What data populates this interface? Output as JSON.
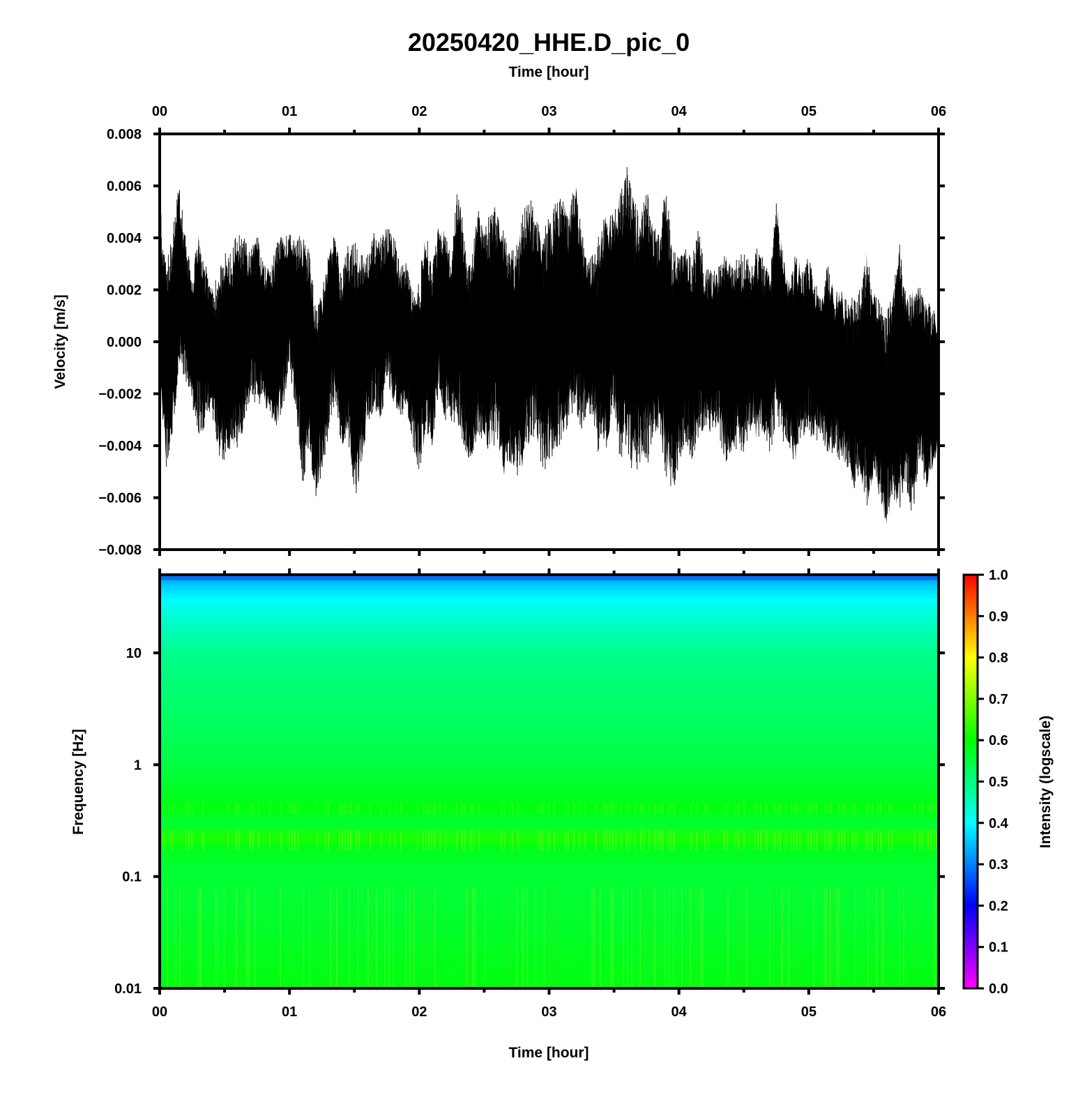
{
  "chart_data": [
    {
      "type": "line",
      "title": "20250420_HHE.D_pic_0",
      "top_xlabel": "Time [hour]",
      "ylabel": "Velocity [m/s]",
      "x_unit": "hour",
      "xlim": [
        0,
        6
      ],
      "x_ticks": [
        "00",
        "01",
        "02",
        "03",
        "04",
        "05",
        "06"
      ],
      "ylim": [
        -0.008,
        0.008
      ],
      "y_ticks": [
        "0.008",
        "0.006",
        "0.004",
        "0.002",
        "0.000",
        "−0.002",
        "−0.004",
        "−0.006",
        "−0.008"
      ],
      "series": [
        {
          "color": "#000000",
          "description_values": "approximate envelope of a dense seismic velocity trace (hour, m/s)",
          "x": [
            0.0,
            0.05,
            0.1,
            0.15,
            0.2,
            0.25,
            0.3,
            0.35,
            0.4,
            0.45,
            0.5,
            0.55,
            0.6,
            0.65,
            0.7,
            0.75,
            0.8,
            0.85,
            0.9,
            0.95,
            1.0,
            1.05,
            1.1,
            1.15,
            1.2,
            1.25,
            1.3,
            1.35,
            1.4,
            1.45,
            1.5,
            1.55,
            1.6,
            1.65,
            1.7,
            1.75,
            1.8,
            1.85,
            1.9,
            1.95,
            2.0,
            2.05,
            2.1,
            2.15,
            2.2,
            2.25,
            2.3,
            2.35,
            2.4,
            2.45,
            2.5,
            2.55,
            2.6,
            2.65,
            2.7,
            2.75,
            2.8,
            2.85,
            2.9,
            2.95,
            3.0,
            3.05,
            3.1,
            3.15,
            3.2,
            3.25,
            3.3,
            3.35,
            3.4,
            3.45,
            3.5,
            3.55,
            3.6,
            3.65,
            3.7,
            3.75,
            3.8,
            3.85,
            3.9,
            3.95,
            4.0,
            4.05,
            4.1,
            4.15,
            4.2,
            4.25,
            4.3,
            4.35,
            4.4,
            4.45,
            4.5,
            4.55,
            4.6,
            4.65,
            4.7,
            4.75,
            4.8,
            4.85,
            4.9,
            4.95,
            5.0,
            5.05,
            5.1,
            5.15,
            5.2,
            5.25,
            5.3,
            5.35,
            5.4,
            5.45,
            5.5,
            5.55,
            5.6,
            5.65,
            5.7,
            5.75,
            5.8,
            5.85,
            5.9,
            5.95,
            6.0
          ],
          "upper": [
            0.0055,
            0.003,
            0.0045,
            0.0061,
            0.004,
            0.0025,
            0.0043,
            0.003,
            0.0022,
            0.0026,
            0.0034,
            0.0035,
            0.0043,
            0.0041,
            0.0035,
            0.0042,
            0.003,
            0.0028,
            0.0039,
            0.0041,
            0.0042,
            0.0038,
            0.0043,
            0.0037,
            0.0013,
            0.002,
            0.0035,
            0.0042,
            0.0025,
            0.0038,
            0.0042,
            0.0035,
            0.0034,
            0.0042,
            0.0041,
            0.0044,
            0.0043,
            0.0029,
            0.0031,
            0.002,
            0.0024,
            0.0046,
            0.0029,
            0.0047,
            0.0042,
            0.0035,
            0.0063,
            0.0038,
            0.0032,
            0.0052,
            0.0044,
            0.005,
            0.0054,
            0.0043,
            0.0034,
            0.0038,
            0.005,
            0.0056,
            0.0048,
            0.0043,
            0.0048,
            0.0055,
            0.0057,
            0.0048,
            0.0063,
            0.0043,
            0.0031,
            0.0035,
            0.0044,
            0.0053,
            0.0049,
            0.006,
            0.0069,
            0.0056,
            0.0048,
            0.006,
            0.0045,
            0.0042,
            0.0063,
            0.0035,
            0.0035,
            0.0038,
            0.0032,
            0.0044,
            0.0028,
            0.0028,
            0.0028,
            0.0035,
            0.0031,
            0.0032,
            0.0035,
            0.0032,
            0.0036,
            0.0035,
            0.0025,
            0.0055,
            0.0035,
            0.0023,
            0.0035,
            0.0028,
            0.0033,
            0.0023,
            0.0016,
            0.0032,
            0.0018,
            0.0022,
            0.0015,
            0.0018,
            0.0022,
            0.0036,
            0.002,
            0.0015,
            0.0011,
            0.002,
            0.0038,
            0.0017,
            0.002,
            0.0022,
            0.0015,
            0.0015,
            0.0005
          ],
          "lower": [
            -0.001,
            -0.005,
            -0.0035,
            -0.001,
            -0.0015,
            -0.0025,
            -0.0036,
            -0.0033,
            -0.0025,
            -0.0045,
            -0.0048,
            -0.004,
            -0.0042,
            -0.0033,
            -0.0021,
            -0.0026,
            -0.0024,
            -0.0028,
            -0.0034,
            -0.0026,
            -0.001,
            -0.0028,
            -0.0056,
            -0.004,
            -0.0063,
            -0.0049,
            -0.0038,
            -0.0021,
            -0.0041,
            -0.0036,
            -0.0063,
            -0.0052,
            -0.0031,
            -0.0027,
            -0.0032,
            -0.0016,
            -0.0023,
            -0.003,
            -0.0025,
            -0.0041,
            -0.0051,
            -0.0038,
            -0.0042,
            -0.0018,
            -0.0031,
            -0.0031,
            -0.0033,
            -0.0041,
            -0.0048,
            -0.0036,
            -0.004,
            -0.0042,
            -0.0038,
            -0.0052,
            -0.0047,
            -0.0053,
            -0.0048,
            -0.0039,
            -0.0035,
            -0.0052,
            -0.0046,
            -0.0044,
            -0.0038,
            -0.0032,
            -0.0025,
            -0.0035,
            -0.0026,
            -0.0033,
            -0.0049,
            -0.0039,
            -0.0025,
            -0.0046,
            -0.0043,
            -0.0052,
            -0.0048,
            -0.0051,
            -0.0036,
            -0.0036,
            -0.0052,
            -0.0059,
            -0.0048,
            -0.0039,
            -0.0046,
            -0.0039,
            -0.0032,
            -0.0038,
            -0.0032,
            -0.0048,
            -0.0044,
            -0.0041,
            -0.0043,
            -0.0035,
            -0.0038,
            -0.0035,
            -0.0043,
            -0.0033,
            -0.0038,
            -0.0044,
            -0.0046,
            -0.0037,
            -0.0035,
            -0.004,
            -0.0036,
            -0.0045,
            -0.0042,
            -0.0047,
            -0.005,
            -0.0057,
            -0.0052,
            -0.0067,
            -0.0053,
            -0.0061,
            -0.0071,
            -0.0063,
            -0.0065,
            -0.0055,
            -0.0069,
            -0.0045,
            -0.0057,
            -0.0049,
            -0.004
          ]
        }
      ]
    },
    {
      "type": "heatmap",
      "xlabel": "Time [hour]",
      "ylabel": "Frequency [Hz]",
      "xlim": [
        0,
        6
      ],
      "x_ticks": [
        "00",
        "01",
        "02",
        "03",
        "04",
        "05",
        "06"
      ],
      "y_scale": "log",
      "ylim": [
        0.01,
        50
      ],
      "y_ticks": [
        {
          "value": 10,
          "label": "10"
        },
        {
          "value": 1,
          "label": "1"
        },
        {
          "value": 0.1,
          "label": "0.1"
        },
        {
          "value": 0.01,
          "label": "0.01"
        }
      ],
      "intensity_by_frequency": {
        "frequency": [
          50,
          40,
          30,
          22,
          15,
          10,
          5,
          2,
          1,
          0.6,
          0.4,
          0.3,
          0.22,
          0.18,
          0.12,
          0.06,
          0.03,
          0.01
        ],
        "intensity": [
          0.31,
          0.36,
          0.4,
          0.43,
          0.46,
          0.49,
          0.51,
          0.53,
          0.55,
          0.57,
          0.59,
          0.56,
          0.62,
          0.58,
          0.56,
          0.56,
          0.57,
          0.59
        ]
      },
      "colorbar": {
        "label": "Intensity (logscale)",
        "range": [
          0.0,
          1.0
        ],
        "ticks": [
          "0.0",
          "0.1",
          "0.2",
          "0.3",
          "0.4",
          "0.5",
          "0.6",
          "0.7",
          "0.8",
          "0.9",
          "1.0"
        ],
        "colormap": [
          "#ff00ff",
          "#0000ff",
          "#00ffff",
          "#00ff00",
          "#ffff00",
          "#ff0000"
        ]
      }
    }
  ]
}
